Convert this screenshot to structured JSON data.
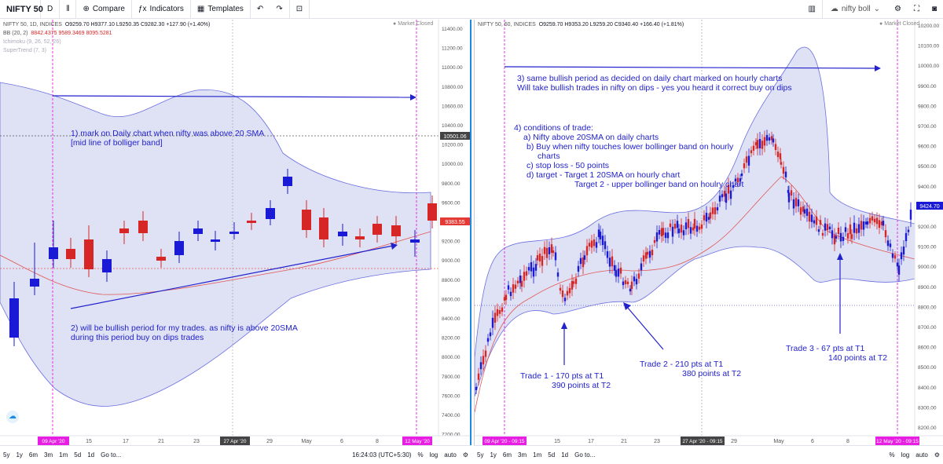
{
  "toolbar": {
    "symbol": "NIFTY 50",
    "interval": "D",
    "compare": "Compare",
    "indicators": "Indicators",
    "templates": "Templates",
    "search_value": "nifty boll"
  },
  "left": {
    "title": "NIFTY 50, 1D, INDICES",
    "ohlc": "O9259.70  H9377.10  L9250.35  C9282.30  +127.90 (+1.40%)",
    "bb": "BB (20, 2)",
    "bb_values": "8842.4375   9589.3469   8095.5281",
    "ichimoku": "Ichimoku (9, 26, 52, 26)",
    "supertrend": "SuperTrend (7, 3)",
    "market_status": "Market Closed",
    "price_label": "9383.55",
    "cross_label": "10501.06",
    "y_ticks": [
      "11400.00",
      "11200.00",
      "11000.00",
      "10800.00",
      "10600.00",
      "10400.00",
      "10200.00",
      "10000.00",
      "9800.00",
      "9600.00",
      "9400.00",
      "9200.00",
      "9000.00",
      "8800.00",
      "8600.00",
      "8400.00",
      "8200.00",
      "8000.00",
      "7800.00",
      "7600.00",
      "7400.00",
      "7200.00"
    ],
    "x_ticks": [
      "15",
      "17",
      "21",
      "23",
      "May",
      "6",
      "8",
      "29"
    ],
    "date_label_1": "09 Apr '20",
    "date_label_2": "27 Apr '20",
    "date_label_3": "12 May '20",
    "ann1_l1": "1) mark on Daily chart when nifty was above 20 SMA",
    "ann1_l2": "[mid line of bolliger band]",
    "ann2_l1": "2) will be bullish period for my trades. as nifty is above 20SMA",
    "ann2_l2": "during this period buy on dips trades",
    "bottom": {
      "ranges": [
        "5y",
        "1y",
        "6m",
        "3m",
        "1m",
        "5d",
        "1d"
      ],
      "goto": "Go to...",
      "time": "16:24:03 (UTC+5:30)",
      "pct": "%",
      "log": "log",
      "auto": "auto"
    }
  },
  "right": {
    "title": "NIFTY 50, 60, INDICES",
    "ohlc": "O9259.70  H9353.20  L9259.20  C9340.40  +166.40 (+1.81%)",
    "market_status": "Market Closed",
    "price_label": "9424.70",
    "y_ticks": [
      "10200.00",
      "10100.00",
      "10000.00",
      "9900.00",
      "9800.00",
      "9700.00",
      "9600.00",
      "9500.00",
      "9400.00",
      "9300.00",
      "9200.00",
      "9100.00",
      "9000.00",
      "8900.00",
      "8800.00",
      "8700.00",
      "8600.00",
      "8500.00",
      "8400.00",
      "8300.00",
      "8200.00"
    ],
    "x_ticks": [
      "15",
      "17",
      "21",
      "23",
      "29",
      "May",
      "6",
      "8"
    ],
    "date_label_1": "09 Apr '20 - 09:15",
    "date_label_2": "27 Apr '20 - 09:15",
    "date_label_3": "12 May '20 - 09:15",
    "ann3_l1": "3) same bullish period as decided on daily chart marked on hourly charts",
    "ann3_l2": "Will take bullish trades in nifty on dips - yes you heard it correct buy on dips",
    "ann4_title": "4) conditions of trade:",
    "ann4_a": "a) Nifty above 20SMA on daily charts",
    "ann4_b1": "b) Buy when nifty touches lower bollinger band on hourly",
    "ann4_b2": "charts",
    "ann4_c": "c) stop loss -  50 points",
    "ann4_d": "d) target - Target 1 20SMA on hourly chart",
    "ann4_d2": "Target 2 - upper bollinger band on houlry chart",
    "trade1_l1": "Trade 1 - 170 pts at T1",
    "trade1_l2": "390 points at T2",
    "trade2_l1": "Trade 2 - 210 pts at T1",
    "trade2_l2": "380 points at T2",
    "trade3_l1": "Trade 3 - 67 pts at T1",
    "trade3_l2": "140 points at T2",
    "bottom": {
      "ranges": [
        "5y",
        "1y",
        "6m",
        "3m",
        "1m",
        "5d",
        "1d"
      ],
      "goto": "Go to...",
      "pct": "%",
      "log": "log",
      "auto": "auto"
    }
  },
  "colors": {
    "up": "#1a1ad6",
    "down": "#d62626",
    "band": "#d8dcf2",
    "annotation": "#2222cc",
    "marker": "#e91ee3"
  }
}
